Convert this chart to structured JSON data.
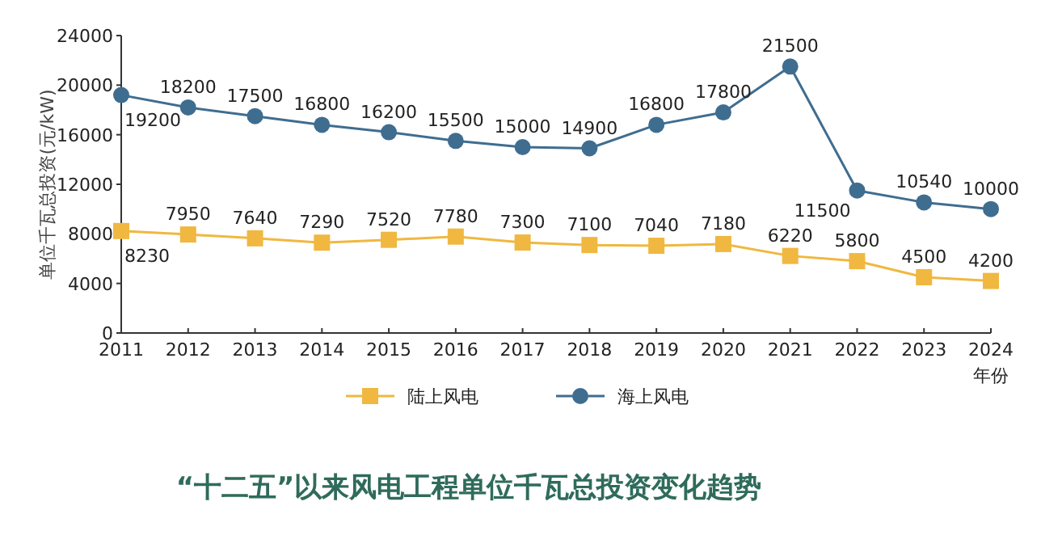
{
  "chart_data": {
    "type": "line",
    "title": "“十二五”以来风电工程单位千瓦总投资变化趋势",
    "xlabel": "年份",
    "ylabel": "单位千瓦总投资(元/kW)",
    "x": [
      2011,
      2012,
      2013,
      2014,
      2015,
      2016,
      2017,
      2018,
      2019,
      2020,
      2021,
      2022,
      2023,
      2024
    ],
    "xlim": [
      2011,
      2024
    ],
    "xticks": [
      2011,
      2012,
      2013,
      2014,
      2015,
      2016,
      2017,
      2018,
      2019,
      2020,
      2021,
      2022,
      2023,
      2024
    ],
    "ylim": [
      0,
      24000
    ],
    "yticks": [
      0,
      4000,
      8000,
      12000,
      16000,
      20000,
      24000
    ],
    "series": [
      {
        "name": "陆上风电",
        "color": "#f0b840",
        "marker": "square",
        "values": [
          8230,
          7950,
          7640,
          7290,
          7520,
          7780,
          7300,
          7100,
          7040,
          7180,
          6220,
          5800,
          4500,
          4200
        ]
      },
      {
        "name": "海上风电",
        "color": "#3f6d90",
        "marker": "circle",
        "values": [
          19200,
          18200,
          17500,
          16800,
          16200,
          15500,
          15000,
          14900,
          16800,
          17800,
          21500,
          11500,
          10540,
          10000
        ]
      }
    ],
    "data_labels": true,
    "legend": "bottom",
    "grid": false
  }
}
